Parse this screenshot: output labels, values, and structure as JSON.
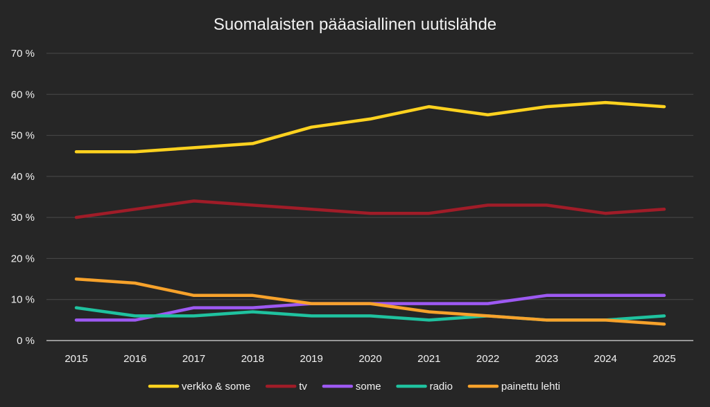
{
  "chart_data": {
    "type": "line",
    "title": "Suomalaisten pääasiallinen uutislähde",
    "xlabel": "",
    "ylabel": "",
    "ylim": [
      0,
      70
    ],
    "y_ticks": [
      "0 %",
      "10 %",
      "20 %",
      "30 %",
      "40 %",
      "50 %",
      "60 %",
      "70 %"
    ],
    "categories": [
      "2015",
      "2016",
      "2017",
      "2018",
      "2019",
      "2020",
      "2021",
      "2022",
      "2023",
      "2024",
      "2025"
    ],
    "grid": true,
    "legend_position": "bottom",
    "series": [
      {
        "name": "verkko & some",
        "color": "#ffd21f",
        "values": [
          46,
          46,
          47,
          48,
          52,
          54,
          57,
          55,
          57,
          58,
          57
        ]
      },
      {
        "name": "tv",
        "color": "#a01c28",
        "values": [
          30,
          32,
          34,
          33,
          32,
          31,
          31,
          33,
          33,
          31,
          32
        ]
      },
      {
        "name": "some",
        "color": "#9d59f2",
        "values": [
          5,
          5,
          8,
          8,
          9,
          9,
          9,
          9,
          11,
          11,
          11
        ]
      },
      {
        "name": "radio",
        "color": "#1fc29f",
        "values": [
          8,
          6,
          6,
          7,
          6,
          6,
          5,
          6,
          5,
          5,
          6
        ]
      },
      {
        "name": "painettu lehti",
        "color": "#f7a22b",
        "values": [
          15,
          14,
          11,
          11,
          9,
          9,
          7,
          6,
          5,
          5,
          4
        ]
      }
    ]
  }
}
